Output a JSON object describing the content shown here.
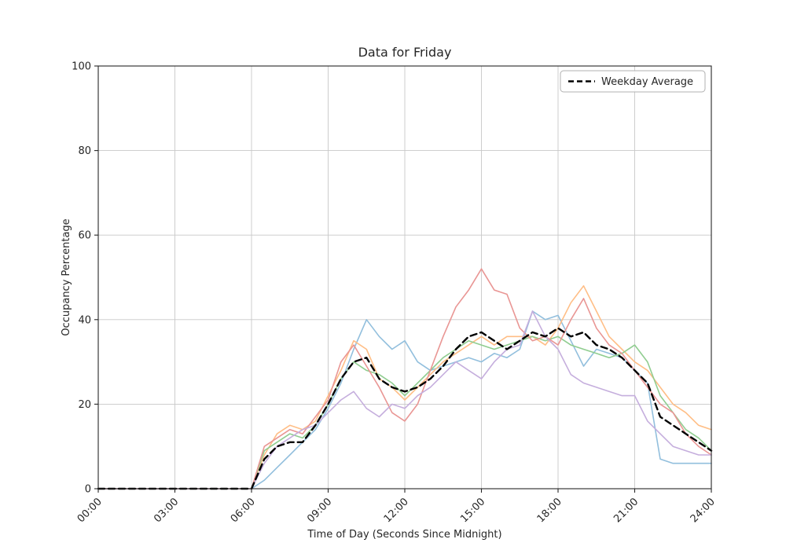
{
  "title": "Data for Friday",
  "axes": {
    "xlabel": "Time of Day (Seconds Since Midnight)",
    "ylabel": "Occupancy Percentage",
    "x_ticks": [
      "00:00",
      "03:00",
      "06:00",
      "09:00",
      "12:00",
      "15:00",
      "18:00",
      "21:00",
      "24:00"
    ],
    "x_tick_hours": [
      0,
      3,
      6,
      9,
      12,
      15,
      18,
      21,
      24
    ],
    "y_ticks": [
      0,
      20,
      40,
      60,
      80,
      100
    ],
    "x_range": [
      0,
      24
    ],
    "y_range": [
      0,
      100
    ],
    "grid": true
  },
  "legend": {
    "entries": [
      {
        "label": "Weekday Average",
        "style": "dashed",
        "color": "#000000"
      }
    ],
    "position": "upper right"
  },
  "style": {
    "grid_color": "#c8c8c8",
    "spine_color": "#262626",
    "background": "#ffffff",
    "legend_border": "#b0b0b0"
  },
  "chart_data": {
    "type": "line",
    "title": "Data for Friday",
    "xlabel": "Time of Day (Seconds Since Midnight)",
    "ylabel": "Occupancy Percentage",
    "xlim": [
      0,
      24
    ],
    "ylim": [
      0,
      100
    ],
    "grid": true,
    "legend_position": "upper right",
    "x_hours": [
      0,
      0.5,
      1,
      1.5,
      2,
      2.5,
      3,
      3.5,
      4,
      4.5,
      5,
      5.5,
      6,
      6.5,
      7,
      7.5,
      8,
      8.5,
      9,
      9.5,
      10,
      10.5,
      11,
      11.5,
      12,
      12.5,
      13,
      13.5,
      14,
      14.5,
      15,
      15.5,
      16,
      16.5,
      17,
      17.5,
      18,
      18.5,
      19,
      19.5,
      20,
      20.5,
      21,
      21.5,
      22,
      22.5,
      23,
      23.5,
      24
    ],
    "series": [
      {
        "name": "blue",
        "color": "#92bfdd",
        "dashed": false,
        "width": 1.6,
        "in_legend": false,
        "values": [
          0,
          0,
          0,
          0,
          0,
          0,
          0,
          0,
          0,
          0,
          0,
          0,
          0,
          2,
          5,
          8,
          11,
          14,
          19,
          25,
          33,
          40,
          36,
          33,
          35,
          30,
          28,
          29,
          30,
          31,
          30,
          32,
          31,
          33,
          42,
          40,
          41,
          35,
          29,
          33,
          32,
          31,
          28,
          25,
          7,
          6,
          6,
          6,
          6
        ]
      },
      {
        "name": "orange",
        "color": "#ffbe86",
        "dashed": false,
        "width": 1.6,
        "in_legend": false,
        "values": [
          0,
          0,
          0,
          0,
          0,
          0,
          0,
          0,
          0,
          0,
          0,
          0,
          0,
          8,
          13,
          15,
          14,
          16,
          22,
          28,
          35,
          33,
          26,
          24,
          21,
          24,
          27,
          30,
          32,
          34,
          36,
          34,
          36,
          36,
          36,
          34,
          38,
          44,
          48,
          42,
          36,
          33,
          30,
          28,
          24,
          20,
          18,
          15,
          14
        ]
      },
      {
        "name": "green",
        "color": "#90cd90",
        "dashed": false,
        "width": 1.6,
        "in_legend": false,
        "values": [
          0,
          0,
          0,
          0,
          0,
          0,
          0,
          0,
          0,
          0,
          0,
          0,
          0,
          9,
          11,
          13,
          12,
          15,
          20,
          26,
          30,
          28,
          27,
          25,
          22,
          25,
          28,
          31,
          33,
          35,
          34,
          33,
          34,
          35,
          36,
          35,
          36,
          34,
          33,
          32,
          31,
          32,
          34,
          30,
          22,
          18,
          14,
          12,
          9
        ]
      },
      {
        "name": "red",
        "color": "#e99694",
        "dashed": false,
        "width": 1.6,
        "in_legend": false,
        "values": [
          0,
          0,
          0,
          0,
          0,
          0,
          0,
          0,
          0,
          0,
          0,
          0,
          0,
          10,
          12,
          14,
          13,
          17,
          21,
          30,
          34,
          29,
          24,
          18,
          16,
          20,
          28,
          36,
          43,
          47,
          52,
          47,
          46,
          38,
          35,
          36,
          34,
          40,
          45,
          38,
          34,
          32,
          28,
          24,
          20,
          18,
          13,
          10,
          8
        ]
      },
      {
        "name": "purple",
        "color": "#c5aedd",
        "dashed": false,
        "width": 1.6,
        "in_legend": false,
        "values": [
          0,
          0,
          0,
          0,
          0,
          0,
          0,
          0,
          0,
          0,
          0,
          0,
          0,
          6,
          10,
          12,
          14,
          15,
          18,
          21,
          23,
          19,
          17,
          20,
          19,
          22,
          24,
          27,
          30,
          28,
          26,
          30,
          33,
          34,
          42,
          36,
          33,
          27,
          25,
          24,
          23,
          22,
          22,
          16,
          13,
          10,
          9,
          8,
          8
        ]
      },
      {
        "name": "Weekday Average",
        "color": "#000000",
        "dashed": true,
        "width": 2.4,
        "in_legend": true,
        "values": [
          0,
          0,
          0,
          0,
          0,
          0,
          0,
          0,
          0,
          0,
          0,
          0,
          0,
          7,
          10,
          11,
          11,
          15,
          20,
          26,
          30,
          31,
          26,
          24,
          23,
          24,
          26,
          29,
          33,
          36,
          37,
          35,
          33,
          35,
          37,
          36,
          38,
          36,
          37,
          34,
          33,
          31,
          28,
          25,
          17,
          15,
          13,
          11,
          9
        ]
      }
    ]
  }
}
